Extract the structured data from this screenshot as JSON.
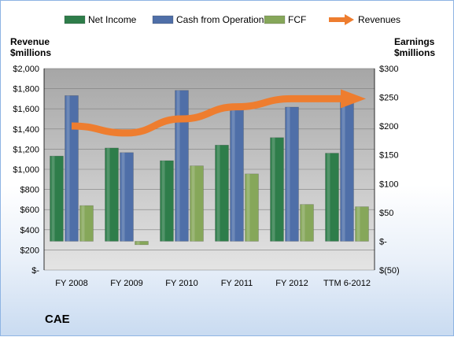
{
  "company_name": "CAE",
  "chart_data": {
    "type": "bar",
    "categories": [
      "FY 2008",
      "FY 2009",
      "FY 2010",
      "FY 2011",
      "FY 2012",
      "TTM 6-2012"
    ],
    "series": [
      {
        "name": "Net Income",
        "axis": "right",
        "color": "#2e7d4a",
        "values": [
          148,
          162,
          140,
          167,
          180,
          153
        ]
      },
      {
        "name": "Cash from Operations",
        "axis": "right",
        "color": "#4f6fa8",
        "values": [
          253,
          154,
          262,
          233,
          233,
          244
        ]
      },
      {
        "name": "FCF",
        "axis": "right",
        "color": "#86a75a",
        "values": [
          62,
          -6,
          131,
          117,
          64,
          60
        ]
      },
      {
        "name": "Revenues",
        "axis": "left",
        "color": "#ee7d2f",
        "values": [
          1430,
          1360,
          1500,
          1620,
          1700,
          1700
        ]
      }
    ],
    "y_left": {
      "label": [
        "Revenue",
        "$millions"
      ],
      "ylim": [
        0,
        2000
      ],
      "ticks": [
        "$-",
        "$200",
        "$400",
        "$600",
        "$800",
        "$1,000",
        "$1,200",
        "$1,400",
        "$1,600",
        "$1,800",
        "$2,000"
      ]
    },
    "y_right": {
      "label": [
        "Earnings",
        "$millions"
      ],
      "ylim": [
        -50,
        300
      ],
      "ticks": [
        "$(50)",
        "$-",
        "$50",
        "$100",
        "$150",
        "$200",
        "$250",
        "$300"
      ]
    },
    "legend_position": "top",
    "grid": true
  }
}
